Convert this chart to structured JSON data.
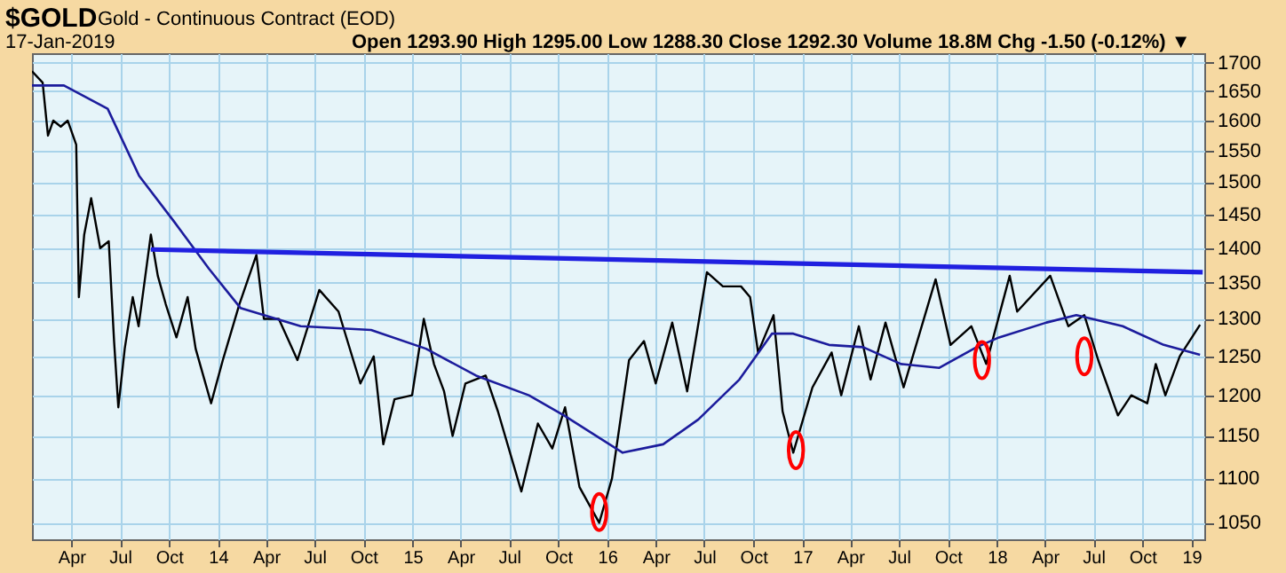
{
  "chart_data": {
    "type": "line",
    "title": "$GOLD",
    "subtitle": "Gold - Continuous Contract (EOD)",
    "annotations": [
      "17-Jan-2019",
      "Open 1293.90  High 1295.00  Low 1288.30  Close 1292.30  Volume 18.8M  Chg -1.50 (-0.12%) ▼"
    ],
    "log": true,
    "grid": true,
    "xlim": [
      "2013-01-17",
      "2019-01-25"
    ],
    "xticks": [
      {
        "value": "2013-04-01",
        "label": "Apr"
      },
      {
        "value": "2013-07-01",
        "label": "Jul"
      },
      {
        "value": "2013-10-01",
        "label": "Oct"
      },
      {
        "value": "2014-01-01",
        "label": "14"
      },
      {
        "value": "2014-04-01",
        "label": "Apr"
      },
      {
        "value": "2014-07-01",
        "label": "Jul"
      },
      {
        "value": "2014-10-01",
        "label": "Oct"
      },
      {
        "value": "2015-01-01",
        "label": "15"
      },
      {
        "value": "2015-04-01",
        "label": "Apr"
      },
      {
        "value": "2015-07-01",
        "label": "Jul"
      },
      {
        "value": "2015-10-01",
        "label": "Oct"
      },
      {
        "value": "2016-01-01",
        "label": "16"
      },
      {
        "value": "2016-04-01",
        "label": "Apr"
      },
      {
        "value": "2016-07-01",
        "label": "Jul"
      },
      {
        "value": "2016-10-01",
        "label": "Oct"
      },
      {
        "value": "2017-01-01",
        "label": "17"
      },
      {
        "value": "2017-04-01",
        "label": "Apr"
      },
      {
        "value": "2017-07-01",
        "label": "Jul"
      },
      {
        "value": "2017-10-01",
        "label": "Oct"
      },
      {
        "value": "2018-01-01",
        "label": "18"
      },
      {
        "value": "2018-04-01",
        "label": "Apr"
      },
      {
        "value": "2018-07-01",
        "label": "Jul"
      },
      {
        "value": "2018-10-01",
        "label": "Oct"
      },
      {
        "value": "2019-01-01",
        "label": "19"
      }
    ],
    "ylim": [
      1032,
      1717
    ],
    "yticks": [
      1050,
      1100,
      1150,
      1200,
      1250,
      1300,
      1350,
      1400,
      1450,
      1500,
      1550,
      1600,
      1650,
      1700
    ],
    "series": [
      {
        "color": "#000000",
        "x": [
          "2013-01-17",
          "2013-02-06",
          "2013-02-16",
          "2013-02-26",
          "2013-03-12",
          "2013-03-25",
          "2013-04-10",
          "2013-04-15",
          "2013-04-25",
          "2013-05-08",
          "2013-05-25",
          "2013-06-10",
          "2013-06-20",
          "2013-06-28",
          "2013-07-10",
          "2013-07-25",
          "2013-08-05",
          "2013-08-28",
          "2013-09-10",
          "2013-09-25",
          "2013-10-15",
          "2013-11-05",
          "2013-11-20",
          "2013-12-19",
          "2014-01-10",
          "2014-02-10",
          "2014-03-14",
          "2014-03-28",
          "2014-04-25",
          "2014-05-30",
          "2014-07-10",
          "2014-08-15",
          "2014-09-25",
          "2014-10-20",
          "2014-11-07",
          "2014-11-28",
          "2014-12-31",
          "2015-01-22",
          "2015-02-10",
          "2015-03-01",
          "2015-03-17",
          "2015-04-10",
          "2015-05-18",
          "2015-06-10",
          "2015-07-24",
          "2015-08-24",
          "2015-09-20",
          "2015-10-14",
          "2015-11-10",
          "2015-12-17",
          "2016-01-10",
          "2016-02-11",
          "2016-03-10",
          "2016-04-01",
          "2016-05-02",
          "2016-05-30",
          "2016-07-06",
          "2016-08-05",
          "2016-09-08",
          "2016-09-25",
          "2016-10-10",
          "2016-11-08",
          "2016-11-25",
          "2016-12-15",
          "2017-01-20",
          "2017-02-25",
          "2017-03-15",
          "2017-04-17",
          "2017-05-09",
          "2017-06-06",
          "2017-07-10",
          "2017-09-08",
          "2017-10-06",
          "2017-11-14",
          "2017-12-12",
          "2018-01-25",
          "2018-02-08",
          "2018-04-11",
          "2018-05-15",
          "2018-06-14",
          "2018-07-10",
          "2018-08-16",
          "2018-09-10",
          "2018-10-10",
          "2018-10-26",
          "2018-11-13",
          "2018-12-10",
          "2019-01-17"
        ],
        "values": [
          1685,
          1665,
          1575,
          1600,
          1590,
          1600,
          1560,
          1330,
          1420,
          1475,
          1400,
          1410,
          1270,
          1185,
          1260,
          1330,
          1290,
          1420,
          1360,
          1320,
          1275,
          1330,
          1260,
          1190,
          1245,
          1320,
          1390,
          1300,
          1300,
          1245,
          1340,
          1310,
          1215,
          1250,
          1140,
          1195,
          1200,
          1300,
          1240,
          1205,
          1150,
          1215,
          1225,
          1180,
          1085,
          1165,
          1135,
          1185,
          1090,
          1050,
          1100,
          1245,
          1270,
          1215,
          1295,
          1205,
          1365,
          1345,
          1345,
          1330,
          1255,
          1305,
          1180,
          1130,
          1210,
          1255,
          1200,
          1290,
          1220,
          1295,
          1210,
          1355,
          1265,
          1290,
          1240,
          1360,
          1310,
          1360,
          1290,
          1305,
          1245,
          1175,
          1200,
          1190,
          1240,
          1200,
          1250,
          1292
        ]
      },
      {
        "color": "#1c1c9c",
        "x": [
          "2013-01-17",
          "2013-03-18",
          "2013-06-08",
          "2013-08-06",
          "2013-10-10",
          "2013-12-15",
          "2014-02-12",
          "2014-06-05",
          "2014-10-15",
          "2015-01-26",
          "2015-04-30",
          "2015-08-07",
          "2015-10-12",
          "2016-01-30",
          "2016-04-15",
          "2016-06-20",
          "2016-09-05",
          "2016-11-05",
          "2016-12-15",
          "2017-02-20",
          "2017-04-25",
          "2017-07-05",
          "2017-09-15",
          "2017-11-24",
          "2018-01-05",
          "2018-04-04",
          "2018-05-30",
          "2018-08-25",
          "2018-11-10",
          "2019-01-17"
        ],
        "values": [
          1660,
          1660,
          1620,
          1510,
          1440,
          1370,
          1315,
          1290,
          1285,
          1260,
          1225,
          1200,
          1175,
          1130,
          1140,
          1170,
          1220,
          1280,
          1280,
          1265,
          1262,
          1240,
          1235,
          1262,
          1275,
          1295,
          1305,
          1290,
          1265,
          1252
        ]
      },
      {
        "color": "#2020e0",
        "x": [
          "2013-08-28",
          "2019-01-22"
        ],
        "values": [
          1398,
          1365
        ]
      },
      {
        "type": "scatter",
        "color": "#ff0000",
        "x": [
          "2015-12-17",
          "2016-12-20",
          "2017-12-04",
          "2018-06-14"
        ],
        "values": [
          1062,
          1133,
          1245,
          1250
        ]
      }
    ]
  }
}
